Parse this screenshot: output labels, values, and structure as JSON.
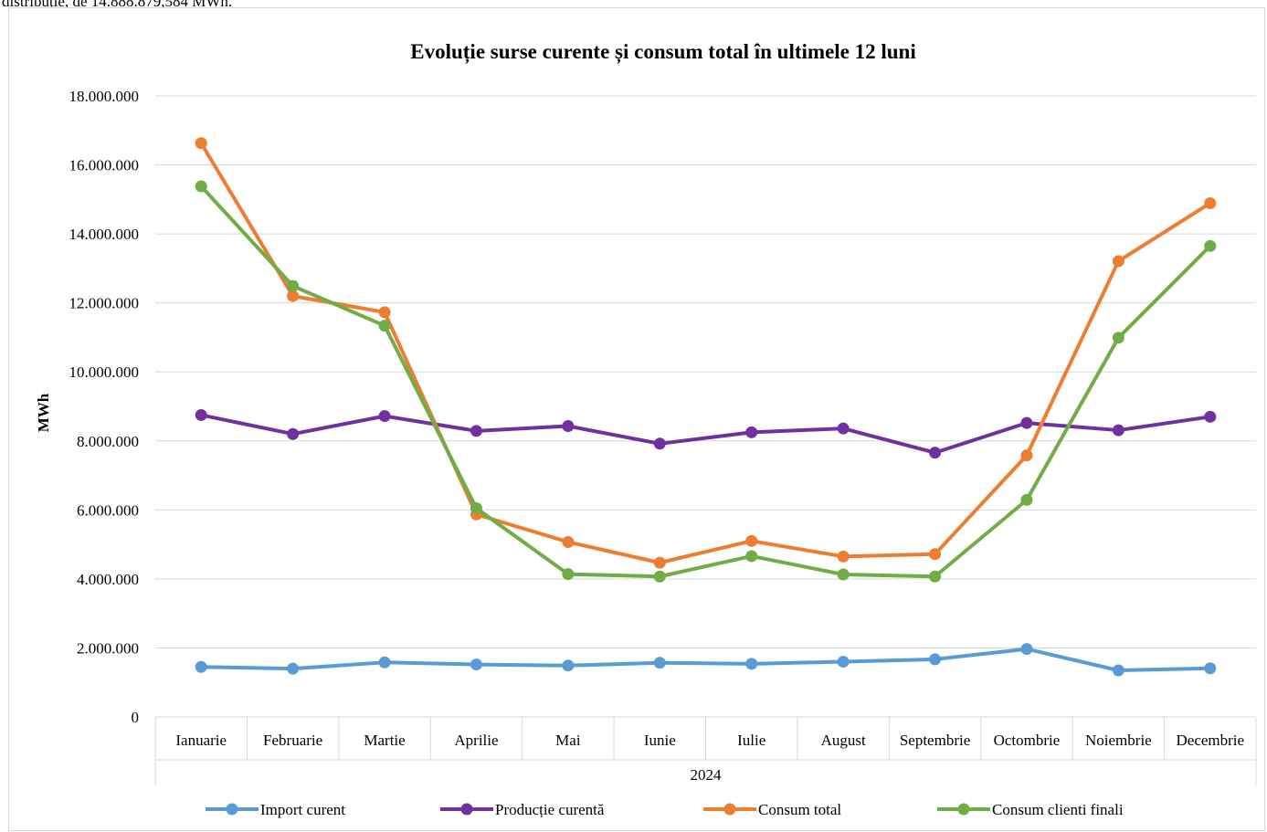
{
  "page": {
    "top_text": "distribuție, de 14.888.879,584 MWh."
  },
  "chart_data": {
    "type": "line",
    "title": "Evoluție surse curente și consum total în ultimele 12 luni",
    "xlabel": "",
    "ylabel": "MWh",
    "ylim": [
      0,
      18000000
    ],
    "yticks": [
      "0",
      "2.000.000",
      "4.000.000",
      "6.000.000",
      "8.000.000",
      "10.000.000",
      "12.000.000",
      "14.000.000",
      "16.000.000",
      "18.000.000"
    ],
    "categories": [
      "Ianuarie",
      "Februarie",
      "Martie",
      "Aprilie",
      "Mai",
      "Iunie",
      "Iulie",
      "August",
      "Septembrie",
      "Octombrie",
      "Noiembrie",
      "Decembrie"
    ],
    "group_label": "2024",
    "grid": true,
    "legend_position": "bottom",
    "series": [
      {
        "name": "Import curent",
        "color": "#5b9bd5",
        "values": [
          1450000,
          1400000,
          1580000,
          1520000,
          1490000,
          1570000,
          1540000,
          1600000,
          1670000,
          1970000,
          1350000,
          1410000
        ]
      },
      {
        "name": "Producție curentă",
        "color": "#7030a0",
        "values": [
          8750000,
          8200000,
          8720000,
          8290000,
          8430000,
          7920000,
          8250000,
          8360000,
          7660000,
          8520000,
          8310000,
          8700000
        ]
      },
      {
        "name": "Consum total",
        "color": "#ed7d31",
        "values": [
          16630000,
          12200000,
          11730000,
          5870000,
          5070000,
          4470000,
          5100000,
          4650000,
          4720000,
          7580000,
          13210000,
          14890000
        ]
      },
      {
        "name": "Consum clienti finali",
        "color": "#70ad47",
        "values": [
          15380000,
          12490000,
          11340000,
          6050000,
          4140000,
          4070000,
          4660000,
          4130000,
          4070000,
          6290000,
          10990000,
          13650000
        ]
      }
    ]
  }
}
